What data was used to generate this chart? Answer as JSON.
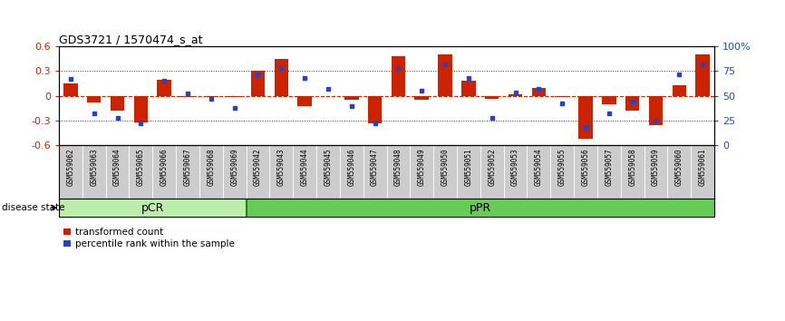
{
  "title": "GDS3721 / 1570474_s_at",
  "samples": [
    "GSM559062",
    "GSM559063",
    "GSM559064",
    "GSM559065",
    "GSM559066",
    "GSM559067",
    "GSM559068",
    "GSM559069",
    "GSM559042",
    "GSM559043",
    "GSM559044",
    "GSM559045",
    "GSM559046",
    "GSM559047",
    "GSM559048",
    "GSM559049",
    "GSM559050",
    "GSM559051",
    "GSM559052",
    "GSM559053",
    "GSM559054",
    "GSM559055",
    "GSM559056",
    "GSM559057",
    "GSM559058",
    "GSM559059",
    "GSM559060",
    "GSM559061"
  ],
  "transformed_count": [
    0.15,
    -0.08,
    -0.18,
    -0.32,
    0.2,
    -0.02,
    -0.01,
    -0.02,
    0.3,
    0.45,
    -0.12,
    0.0,
    -0.05,
    -0.33,
    0.48,
    -0.05,
    0.5,
    0.18,
    -0.04,
    0.02,
    0.1,
    -0.02,
    -0.52,
    -0.1,
    -0.18,
    -0.36,
    0.13,
    0.5
  ],
  "percentile_rank": [
    67,
    32,
    28,
    22,
    65,
    52,
    47,
    38,
    72,
    78,
    68,
    57,
    40,
    22,
    78,
    55,
    82,
    68,
    28,
    53,
    57,
    42,
    18,
    32,
    44,
    25,
    72,
    82
  ],
  "pCR_count": 8,
  "pPR_count": 20,
  "ylim": [
    -0.6,
    0.6
  ],
  "yticks_left": [
    -0.6,
    -0.3,
    0.0,
    0.3,
    0.6
  ],
  "yticks_right_pct": [
    0,
    25,
    50,
    75,
    100
  ],
  "right_ylabels": [
    "0",
    "25",
    "50",
    "75",
    "100%"
  ],
  "bar_color": "#CC2200",
  "dot_color": "#2244CC",
  "zero_line_color": "#CC2200",
  "dotted_line_color": "#333333",
  "pCR_color": "#BBEEAA",
  "pPR_color": "#66CC55",
  "label_bg_color": "#CCCCCC",
  "legend_bar_label": "transformed count",
  "legend_dot_label": "percentile rank within the sample",
  "disease_state_label": "disease state"
}
